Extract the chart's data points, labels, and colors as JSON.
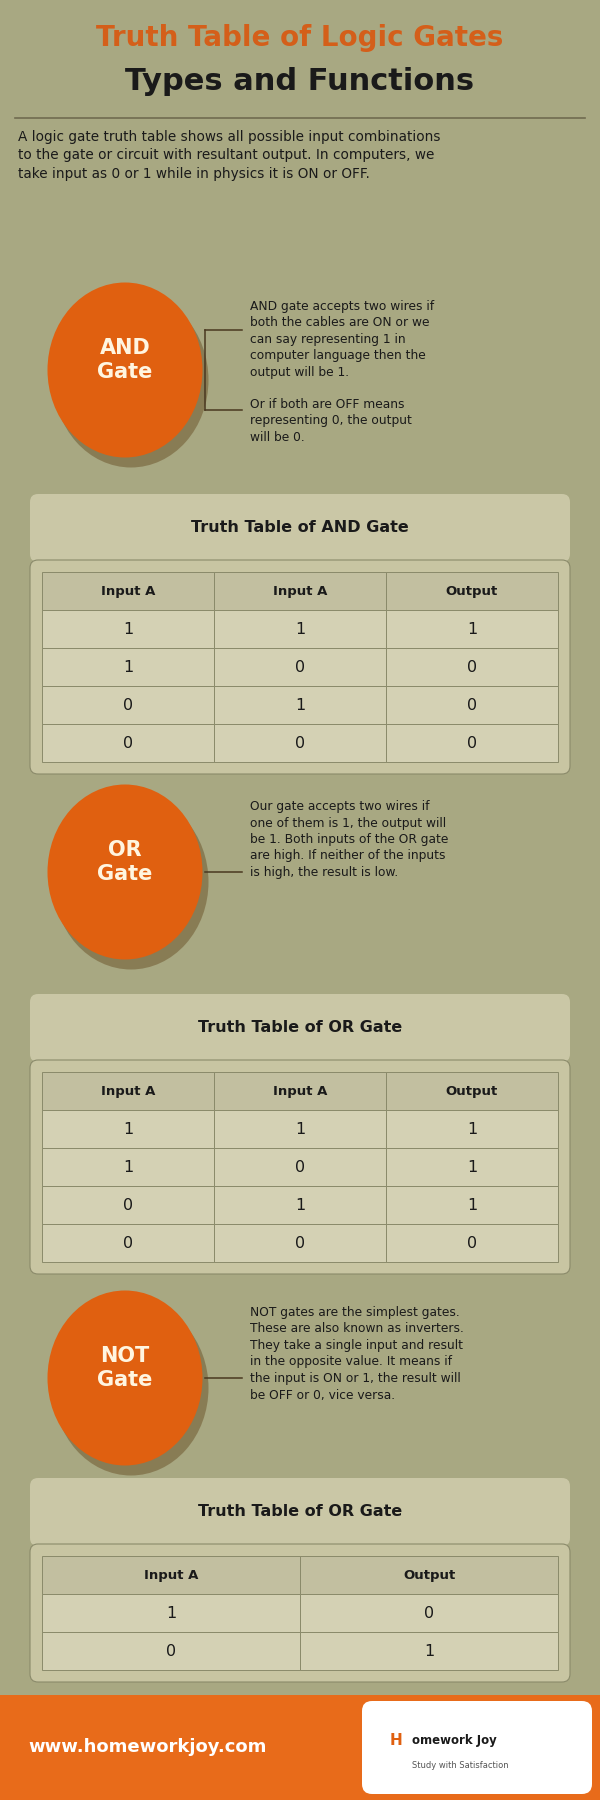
{
  "bg_color": "#a8a882",
  "title_line1": "Truth Table of Logic Gates",
  "title_line2": "Types and Functions",
  "title_color": "#d45f1a",
  "title2_color": "#1a1a1a",
  "intro_text": "A logic gate truth table shows all possible input combinations\nto the gate or circuit with resultant output. In computers, we\ntake input as 0 or 1 while in physics it is ON or OFF.",
  "orange_color": "#e06010",
  "table_bg": "#d4d1b4",
  "footer_color": "#e86b1a",
  "footer_text": "www.homeworkjoy.com",
  "gates": [
    {
      "name": "AND\nGate",
      "desc1": "AND gate accepts two wires if\nboth the cables are ON or we\ncan say representing 1 in\ncomputer language then the\noutput will be 1.",
      "desc2": "Or if both are OFF means\nrepresenting 0, the output\nwill be 0.",
      "has_two_desc": true,
      "table_title": "Truth Table of AND Gate",
      "headers": [
        "Input A",
        "Input A",
        "Output"
      ],
      "rows": [
        [
          "1",
          "1",
          "1"
        ],
        [
          "1",
          "0",
          "0"
        ],
        [
          "0",
          "1",
          "0"
        ],
        [
          "0",
          "0",
          "0"
        ]
      ]
    },
    {
      "name": "OR\nGate",
      "desc1": "Our gate accepts two wires if\none of them is 1, the output will\nbe 1. Both inputs of the OR gate\nare high. If neither of the inputs\nis high, the result is low.",
      "desc2": null,
      "has_two_desc": false,
      "table_title": "Truth Table of OR Gate",
      "headers": [
        "Input A",
        "Input A",
        "Output"
      ],
      "rows": [
        [
          "1",
          "1",
          "1"
        ],
        [
          "1",
          "0",
          "1"
        ],
        [
          "0",
          "1",
          "1"
        ],
        [
          "0",
          "0",
          "0"
        ]
      ]
    },
    {
      "name": "NOT\nGate",
      "desc1": "NOT gates are the simplest gates.\nThese are also known as inverters.\nThey take a single input and result\nin the opposite value. It means if\nthe input is ON or 1, the result will\nbe OFF or 0, vice versa.",
      "desc2": null,
      "has_two_desc": false,
      "table_title": "Truth Table of OR Gate",
      "headers": [
        "Input A",
        "Output"
      ],
      "rows": [
        [
          "1",
          "0"
        ],
        [
          "0",
          "1"
        ]
      ]
    }
  ]
}
